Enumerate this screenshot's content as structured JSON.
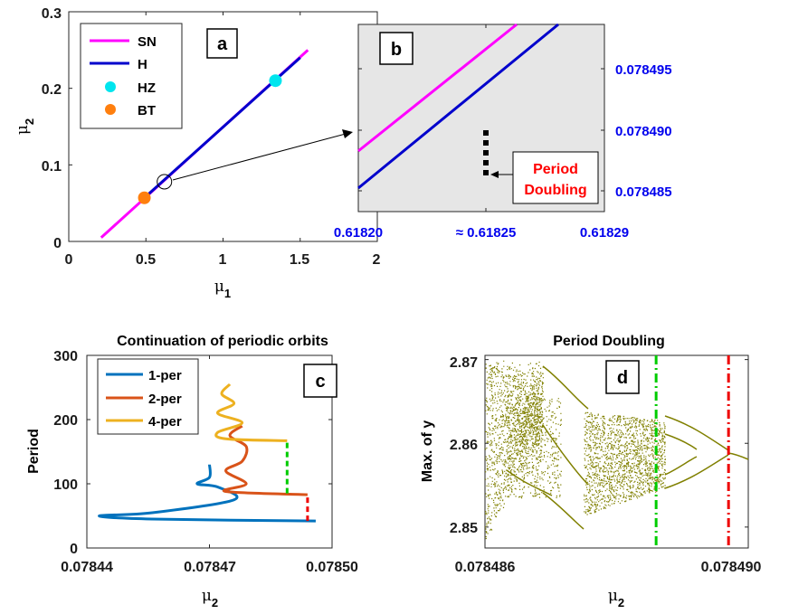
{
  "chart_data": [
    {
      "panel": "a",
      "type": "line",
      "xlabel": "μ1",
      "ylabel": "μ2",
      "xlim": [
        0,
        2
      ],
      "ylim": [
        0,
        0.3
      ],
      "xticks": [
        "0",
        "0.5",
        "1",
        "1.5",
        "2"
      ],
      "yticks": [
        "0",
        "0.1",
        "0.2",
        "0.3"
      ],
      "legend": "top-left",
      "series": [
        {
          "name": "SN",
          "color": "#ff00ff",
          "points": [
            [
              0.21,
              0.005
            ],
            [
              1.55,
              0.25
            ]
          ]
        },
        {
          "name": "H",
          "color": "#0000cc",
          "points": [
            [
              0.49,
              0.057
            ],
            [
              1.5,
              0.24
            ]
          ]
        }
      ],
      "markers": [
        {
          "name": "HZ",
          "color": "#00e5ee",
          "x": 1.34,
          "y": 0.21
        },
        {
          "name": "BT",
          "color": "#ff7f0e",
          "x": 0.49,
          "y": 0.057
        }
      ],
      "circle": {
        "x": 0.62,
        "y": 0.078
      }
    },
    {
      "panel": "b",
      "type": "line",
      "background": "#e6e6e6",
      "xticks": [
        "0.61820",
        "≈ 0.61825",
        "0.61829"
      ],
      "yticks": [
        "0.078495",
        "0.078490",
        "0.078485"
      ],
      "series": [
        {
          "name": "SN",
          "color": "#ff00ff"
        },
        {
          "name": "H",
          "color": "#0000cc"
        }
      ],
      "annotation": {
        "text1": "Period",
        "text2": "Doubling",
        "color": "#ff0000"
      }
    },
    {
      "panel": "c",
      "type": "line",
      "title": "Continuation of periodic orbits",
      "xlabel": "μ2",
      "ylabel": "Period",
      "xlim": [
        0.07844,
        0.0785
      ],
      "ylim": [
        0,
        300
      ],
      "xticks": [
        "0.07844",
        "0.07847",
        "0.07850"
      ],
      "yticks": [
        "0",
        "100",
        "200",
        "300"
      ],
      "legend": "top-left",
      "series": [
        {
          "name": "1-per",
          "color": "#0072bd",
          "points": [
            [
              0.07847,
              130
            ],
            [
              0.07847,
              110
            ],
            [
              0.078467,
              100
            ],
            [
              0.078472,
              95
            ],
            [
              0.078476,
              75
            ],
            [
              0.078456,
              55
            ],
            [
              0.078443,
              50
            ],
            [
              0.078456,
              45
            ],
            [
              0.078496,
              42
            ]
          ]
        },
        {
          "name": "2-per",
          "color": "#d95319",
          "points": [
            [
              0.078478,
              190
            ],
            [
              0.078475,
              175
            ],
            [
              0.078479,
              158
            ],
            [
              0.078478,
              135
            ],
            [
              0.078474,
              120
            ],
            [
              0.078479,
              100
            ],
            [
              0.078474,
              88
            ],
            [
              0.078494,
              83
            ]
          ]
        },
        {
          "name": "4-per",
          "color": "#edb120",
          "points": [
            [
              0.078475,
              255
            ],
            [
              0.078473,
              240
            ],
            [
              0.078476,
              225
            ],
            [
              0.078472,
              210
            ],
            [
              0.078478,
              195
            ],
            [
              0.078472,
              180
            ],
            [
              0.078474,
              170
            ],
            [
              0.078489,
              167
            ]
          ]
        }
      ],
      "dashed": [
        {
          "color": "#00cc00",
          "x": 0.078489,
          "y": [
            85,
            167
          ]
        },
        {
          "color": "#ee0000",
          "x": 0.078494,
          "y": [
            42,
            83
          ]
        }
      ]
    },
    {
      "panel": "d",
      "type": "scatter",
      "title": "Period Doubling",
      "xlabel": "μ2",
      "ylabel": "Max. of y",
      "xlim": [
        0.078486,
        0.07849
      ],
      "ylim": [
        2.8475,
        2.8705
      ],
      "xticks": [
        "0.078486",
        "0.078490"
      ],
      "yticks": [
        "2.85",
        "2.86",
        "2.87"
      ],
      "color": "#808000",
      "dashed": [
        {
          "color": "#00cc00",
          "x": 0.0784886
        },
        {
          "color": "#ee0000",
          "x": 0.0784897
        }
      ]
    }
  ]
}
